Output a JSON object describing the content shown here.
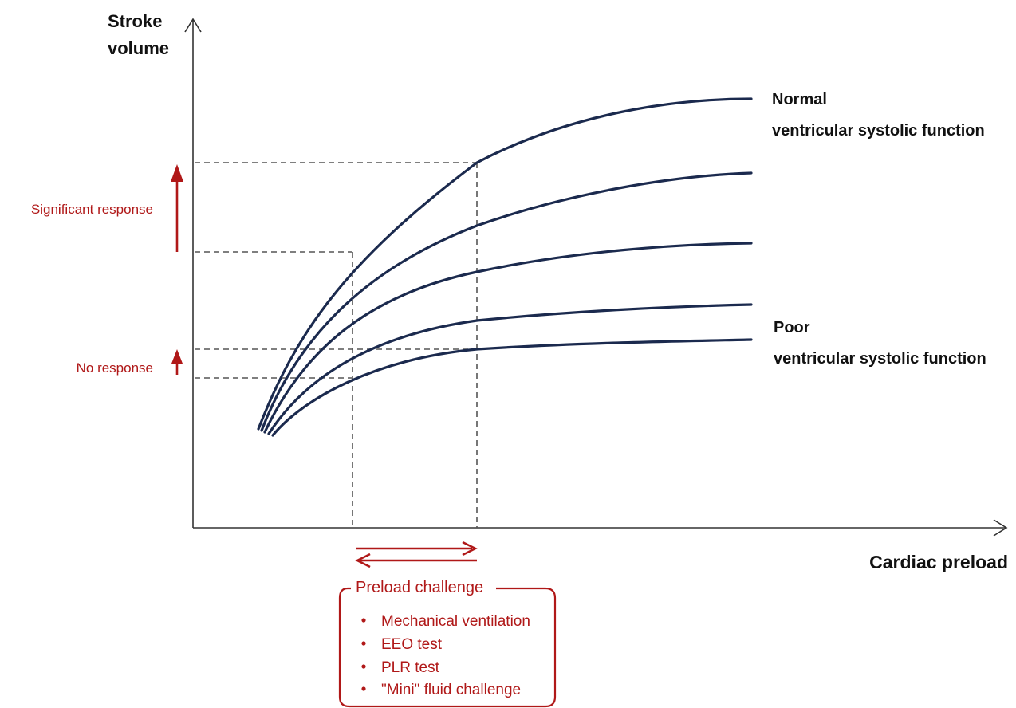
{
  "y_axis_label": [
    "Stroke",
    "volume"
  ],
  "x_axis_label": "Cardiac preload",
  "curve_labels": {
    "normal": [
      "Normal",
      "ventricular systolic function"
    ],
    "poor": [
      "Poor",
      "ventricular systolic function"
    ]
  },
  "responses": {
    "significant": "Significant response",
    "none": "No response"
  },
  "preload_box": {
    "title": "Preload challenge",
    "items": [
      "Mechanical ventilation",
      "EEO test",
      "PLR test",
      "\"Mini\" fluid challenge"
    ]
  },
  "colors": {
    "curve": "#1b2a4e",
    "accent_red": "#b01818",
    "axis": "#333333"
  }
}
